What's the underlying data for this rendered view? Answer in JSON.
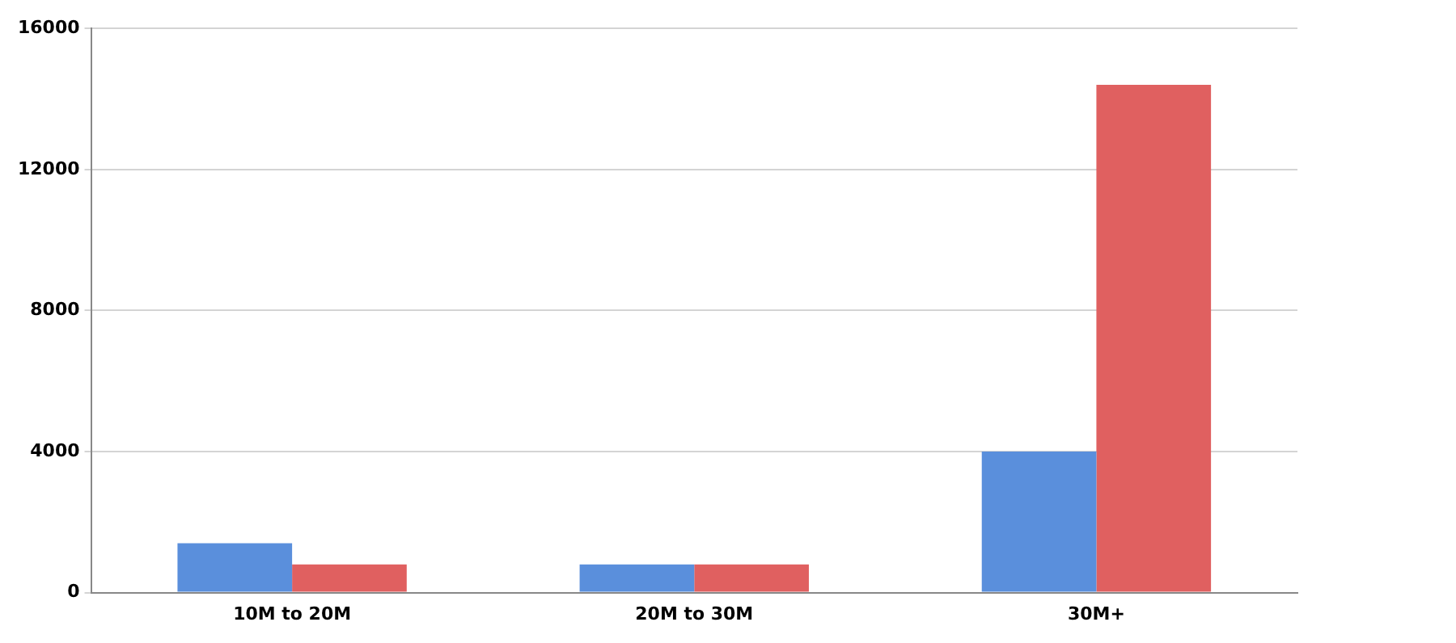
{
  "chart_data": {
    "type": "bar",
    "categories": [
      "10M to 20M",
      "20M to 30M",
      "30M+"
    ],
    "series": [
      {
        "color": "#5a8fdc",
        "values": [
          1400,
          800,
          4000
        ]
      },
      {
        "color": "#e06060",
        "values": [
          800,
          800,
          14400
        ]
      }
    ],
    "ylim": [
      0,
      16000
    ],
    "yticks": [
      0,
      4000,
      8000,
      12000,
      16000
    ],
    "grid": "y",
    "legend": false
  }
}
